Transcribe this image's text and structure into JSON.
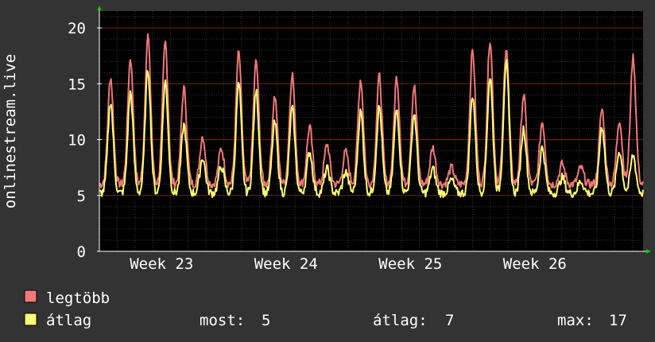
{
  "chart_data": {
    "type": "line",
    "title": "",
    "xlabel": "",
    "ylabel": "onlinestream.live",
    "xlim": [
      0,
      4.37
    ],
    "ylim": [
      0,
      21.5
    ],
    "yticks": [
      0,
      5,
      10,
      15,
      20
    ],
    "xticks": [
      {
        "label": "Week 23",
        "x": 0.5
      },
      {
        "label": "Week 24",
        "x": 1.5
      },
      {
        "label": "Week 25",
        "x": 2.5
      },
      {
        "label": "Week 26",
        "x": 3.5
      }
    ],
    "grid": true,
    "legend_position": "bottom-left",
    "series": [
      {
        "name": "legtöbb",
        "color": "#f07878",
        "peaks": [
          {
            "x": 0.09,
            "y": 15.6
          },
          {
            "x": 0.25,
            "y": 17.3
          },
          {
            "x": 0.39,
            "y": 19.3
          },
          {
            "x": 0.53,
            "y": 18.7
          },
          {
            "x": 0.68,
            "y": 14.6
          },
          {
            "x": 0.83,
            "y": 10.3
          },
          {
            "x": 0.98,
            "y": 9.2
          },
          {
            "x": 1.12,
            "y": 17.8
          },
          {
            "x": 1.26,
            "y": 17.0
          },
          {
            "x": 1.41,
            "y": 13.9
          },
          {
            "x": 1.55,
            "y": 15.9
          },
          {
            "x": 1.69,
            "y": 11.1
          },
          {
            "x": 1.83,
            "y": 9.6
          },
          {
            "x": 1.98,
            "y": 8.9
          },
          {
            "x": 2.1,
            "y": 15.4
          },
          {
            "x": 2.25,
            "y": 15.7
          },
          {
            "x": 2.39,
            "y": 15.6
          },
          {
            "x": 2.53,
            "y": 14.8
          },
          {
            "x": 2.68,
            "y": 9.3
          },
          {
            "x": 2.83,
            "y": 7.5
          },
          {
            "x": 3.0,
            "y": 18.0
          },
          {
            "x": 3.14,
            "y": 19.0
          },
          {
            "x": 3.27,
            "y": 18.3
          },
          {
            "x": 3.41,
            "y": 14.0
          },
          {
            "x": 3.56,
            "y": 11.6
          },
          {
            "x": 3.72,
            "y": 7.8
          },
          {
            "x": 3.87,
            "y": 7.5
          },
          {
            "x": 4.04,
            "y": 12.7
          },
          {
            "x": 4.18,
            "y": 11.8
          },
          {
            "x": 4.29,
            "y": 17.4
          }
        ],
        "baseline": 6.0
      },
      {
        "name": "átlag",
        "color": "#ffff78",
        "peaks": [
          {
            "x": 0.09,
            "y": 13.4
          },
          {
            "x": 0.25,
            "y": 14.2
          },
          {
            "x": 0.39,
            "y": 16.3
          },
          {
            "x": 0.53,
            "y": 15.2
          },
          {
            "x": 0.68,
            "y": 11.3
          },
          {
            "x": 0.83,
            "y": 8.4
          },
          {
            "x": 0.98,
            "y": 7.6
          },
          {
            "x": 1.12,
            "y": 15.0
          },
          {
            "x": 1.26,
            "y": 14.3
          },
          {
            "x": 1.41,
            "y": 11.5
          },
          {
            "x": 1.55,
            "y": 12.8
          },
          {
            "x": 1.69,
            "y": 8.9
          },
          {
            "x": 1.83,
            "y": 7.4
          },
          {
            "x": 1.98,
            "y": 7.1
          },
          {
            "x": 2.1,
            "y": 12.5
          },
          {
            "x": 2.25,
            "y": 12.9
          },
          {
            "x": 2.39,
            "y": 12.7
          },
          {
            "x": 2.53,
            "y": 12.3
          },
          {
            "x": 2.68,
            "y": 7.4
          },
          {
            "x": 2.83,
            "y": 6.4
          },
          {
            "x": 3.0,
            "y": 14.0
          },
          {
            "x": 3.14,
            "y": 15.6
          },
          {
            "x": 3.27,
            "y": 17.0
          },
          {
            "x": 3.41,
            "y": 11.0
          },
          {
            "x": 3.56,
            "y": 9.3
          },
          {
            "x": 3.72,
            "y": 6.6
          },
          {
            "x": 3.87,
            "y": 6.3
          },
          {
            "x": 4.04,
            "y": 11.2
          },
          {
            "x": 4.18,
            "y": 9.0
          },
          {
            "x": 4.29,
            "y": 8.6
          }
        ],
        "baseline": 5.2
      }
    ]
  },
  "legend": {
    "items": [
      {
        "label": "legtöbb",
        "color": "#f07878"
      },
      {
        "label": "átlag",
        "color": "#ffff78"
      }
    ],
    "stats": [
      {
        "label": "most:",
        "value": "5"
      },
      {
        "label": "átlag:",
        "value": "7"
      },
      {
        "label": "max:",
        "value": "17"
      }
    ]
  }
}
